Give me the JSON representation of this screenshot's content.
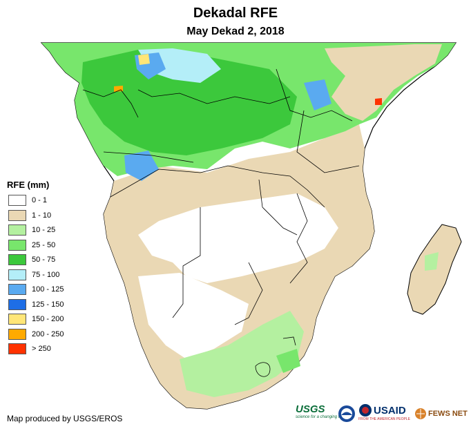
{
  "title": "Dekadal RFE",
  "subtitle": "May Dekad 2, 2018",
  "legend": {
    "title": "RFE (mm)",
    "items": [
      {
        "label": "0 - 1",
        "color": "#ffffff"
      },
      {
        "label": "1 - 10",
        "color": "#ead8b4"
      },
      {
        "label": "10 - 25",
        "color": "#b4f0a0"
      },
      {
        "label": "25 - 50",
        "color": "#78e66c"
      },
      {
        "label": "50 - 75",
        "color": "#3cc83c"
      },
      {
        "label": "75 - 100",
        "color": "#b4eef8"
      },
      {
        "label": "100 - 125",
        "color": "#5aaaf0"
      },
      {
        "label": "125 - 150",
        "color": "#1e6ee6"
      },
      {
        "label": "150 - 200",
        "color": "#ffe678"
      },
      {
        "label": "200 - 250",
        "color": "#ffaa00"
      },
      {
        "label": "> 250",
        "color": "#ff3200"
      }
    ]
  },
  "credit": "Map produced by USGS/EROS",
  "logos": {
    "usgs": "USGS",
    "usgs_tagline": "science for a changing world",
    "usaid": "USAID",
    "usaid_tagline": "FROM THE AMERICAN PEOPLE",
    "fewsnet": "FEWS NET"
  }
}
